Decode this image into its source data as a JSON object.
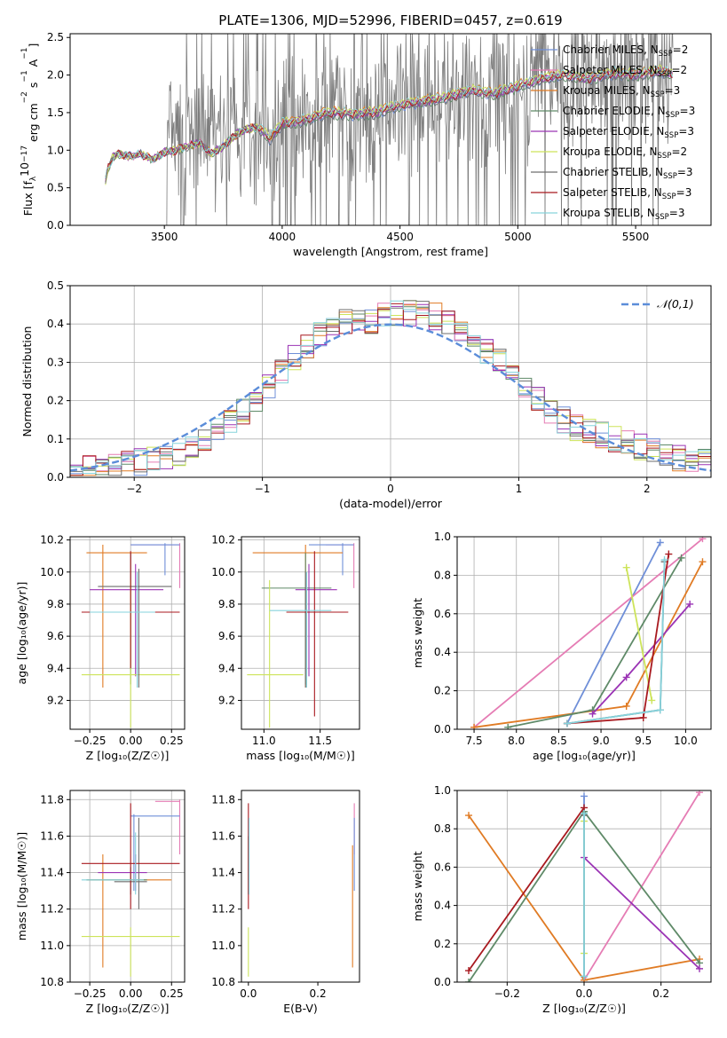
{
  "title": "PLATE=1306, MJD=52996, FIBERID=0457, z=0.619",
  "colors": {
    "Chabrier MILES": "#6f8fd8",
    "Salpeter MILES": "#e57cb4",
    "Kroupa MILES": "#e07b24",
    "Chabrier ELODIE": "#5f8a68",
    "Salpeter ELODIE": "#9b34b5",
    "Kroupa ELODIE": "#cde45a",
    "Chabrier STELIB": "#6e6e6e",
    "Salpeter STELIB": "#a8191f",
    "Kroupa STELIB": "#86d3dc",
    "normal": "#5b8dd9"
  },
  "chart_data": [
    {
      "type": "line",
      "panel": "spectrum",
      "xlabel": "wavelength [Angstrom, rest frame]",
      "ylabel": "Flux [f$_\\lambda$10$^{-17}$ erg cm$^{-2}$ s$^{-1}$ A$^{-1}$]",
      "ylabel_parts": [
        "Flux [f",
        "λ",
        "10",
        "−17",
        " erg cm",
        "−2",
        " s",
        "−1",
        " A",
        "−1",
        "]"
      ],
      "xlim": [
        3100,
        5820
      ],
      "ylim": [
        0,
        2.55
      ],
      "xticks": [
        3500,
        4000,
        4500,
        5000,
        5500
      ],
      "yticks": [
        0.0,
        0.5,
        1.0,
        1.5,
        2.0,
        2.5
      ],
      "data_gray": {
        "x_start": 3510,
        "x_end": 5660,
        "notes": "noisy observed spectrum"
      },
      "model_continuum": {
        "x": [
          3250,
          3260,
          3280,
          3300,
          3350,
          3400,
          3450,
          3500,
          3550,
          3600,
          3650,
          3700,
          3750,
          3800,
          3850,
          3900,
          3950,
          4000,
          4100,
          4200,
          4300,
          4400,
          4500,
          4600,
          4700,
          4800,
          4900,
          5000,
          5100,
          5200,
          5300,
          5400,
          5500,
          5600,
          5660
        ],
        "y": [
          0.6,
          0.75,
          0.9,
          0.95,
          0.92,
          0.95,
          0.88,
          0.97,
          1.0,
          1.05,
          1.1,
          0.95,
          1.05,
          1.2,
          1.28,
          1.3,
          1.15,
          1.35,
          1.4,
          1.5,
          1.48,
          1.5,
          1.6,
          1.65,
          1.7,
          1.8,
          1.75,
          1.85,
          1.95,
          2.0,
          1.95,
          2.02,
          2.0,
          2.05,
          2.0
        ]
      },
      "legend": [
        {
          "label": "Chabrier MILES",
          "sub": "N",
          "subscript": "SSP",
          "value": "=2"
        },
        {
          "label": "Salpeter MILES",
          "sub": "N",
          "subscript": "SSP",
          "value": "=2"
        },
        {
          "label": "Kroupa MILES",
          "sub": "N",
          "subscript": "SSP",
          "value": "=3"
        },
        {
          "label": "Chabrier ELODIE",
          "sub": "N",
          "subscript": "SSP",
          "value": "=3"
        },
        {
          "label": "Salpeter ELODIE",
          "sub": "N",
          "subscript": "SSP",
          "value": "=3"
        },
        {
          "label": "Kroupa ELODIE",
          "sub": "N",
          "subscript": "SSP",
          "value": "=2"
        },
        {
          "label": "Chabrier STELIB",
          "sub": "N",
          "subscript": "SSP",
          "value": "=3"
        },
        {
          "label": "Salpeter STELIB",
          "sub": "N",
          "subscript": "SSP",
          "value": "=3"
        },
        {
          "label": "Kroupa STELIB",
          "sub": "N",
          "subscript": "SSP",
          "value": "=3"
        }
      ],
      "legend_placement": "upper-right"
    },
    {
      "type": "histogram",
      "panel": "residuals",
      "xlabel": "(data-model)/error",
      "ylabel": "Normed distribution",
      "xlim": [
        -2.5,
        2.5
      ],
      "ylim": [
        0,
        0.5
      ],
      "xticks": [
        -2,
        -1,
        0,
        1,
        2
      ],
      "yticks": [
        0.0,
        0.1,
        0.2,
        0.3,
        0.4,
        0.5
      ],
      "grid": true,
      "bins": [
        -2.5,
        -2.4,
        -2.3,
        -2.2,
        -2.1,
        -2.0,
        -1.9,
        -1.8,
        -1.7,
        -1.6,
        -1.5,
        -1.4,
        -1.3,
        -1.2,
        -1.1,
        -1.0,
        -0.9,
        -0.8,
        -0.7,
        -0.6,
        -0.5,
        -0.4,
        -0.3,
        -0.2,
        -0.1,
        0.0,
        0.1,
        0.2,
        0.3,
        0.4,
        0.5,
        0.6,
        0.7,
        0.8,
        0.9,
        1.0,
        1.1,
        1.2,
        1.3,
        1.4,
        1.5,
        1.6,
        1.7,
        1.8,
        1.9,
        2.0,
        2.1,
        2.2,
        2.3,
        2.4,
        2.5
      ],
      "envelope": [
        0.02,
        0.025,
        0.03,
        0.03,
        0.035,
        0.04,
        0.045,
        0.05,
        0.06,
        0.08,
        0.1,
        0.12,
        0.14,
        0.17,
        0.2,
        0.24,
        0.28,
        0.31,
        0.34,
        0.37,
        0.4,
        0.41,
        0.4,
        0.41,
        0.42,
        0.43,
        0.43,
        0.43,
        0.42,
        0.4,
        0.38,
        0.35,
        0.33,
        0.3,
        0.26,
        0.23,
        0.2,
        0.17,
        0.15,
        0.13,
        0.12,
        0.11,
        0.1,
        0.09,
        0.08,
        0.07,
        0.06,
        0.05,
        0.04,
        0.04
      ],
      "legend": [
        {
          "label": "𝒩(0,1)"
        }
      ],
      "legend_placement": "upper-right"
    },
    {
      "type": "scatter",
      "panel": "age-vs-Z",
      "xlabel": "Z [log₁₀(Z/Z☉)]",
      "ylabel": "age  [log₁₀(age/yr)]",
      "xlim": [
        -0.37,
        0.33
      ],
      "ylim": [
        9.02,
        10.22
      ],
      "xticks": [
        -0.25,
        0.0,
        0.25
      ],
      "yticks": [
        9.2,
        9.4,
        9.6,
        9.8,
        10.0,
        10.2
      ],
      "grid": true
    },
    {
      "type": "scatter",
      "panel": "age-vs-mass",
      "xlabel": "mass [log₁₀(M/M☉)]",
      "xlim": [
        10.8,
        11.85
      ],
      "ylim": [
        9.02,
        10.22
      ],
      "xticks": [
        11.0,
        11.5
      ],
      "yticks": [
        9.2,
        9.4,
        9.6,
        9.8,
        10.0,
        10.2
      ],
      "grid": true
    },
    {
      "type": "line",
      "panel": "weight-vs-age",
      "xlabel": "age  [log₁₀(age/yr)]",
      "ylabel": "mass weight",
      "xlim": [
        7.3,
        10.3
      ],
      "ylim": [
        0,
        1.0
      ],
      "xticks": [
        7.5,
        8.0,
        8.5,
        9.0,
        9.5,
        10.0
      ],
      "yticks": [
        0.0,
        0.2,
        0.4,
        0.6,
        0.8,
        1.0
      ],
      "grid": true,
      "series": [
        {
          "name": "Chabrier MILES",
          "x": [
            8.6,
            9.7
          ],
          "y": [
            0.03,
            0.97
          ]
        },
        {
          "name": "Salpeter MILES",
          "x": [
            7.5,
            10.2
          ],
          "y": [
            0.01,
            0.99
          ]
        },
        {
          "name": "Kroupa MILES",
          "x": [
            7.5,
            9.3,
            10.2
          ],
          "y": [
            0.01,
            0.12,
            0.87
          ]
        },
        {
          "name": "Chabrier ELODIE",
          "x": [
            7.9,
            8.9,
            9.95
          ],
          "y": [
            0.01,
            0.1,
            0.89
          ]
        },
        {
          "name": "Salpeter ELODIE",
          "x": [
            8.9,
            9.3,
            10.05
          ],
          "y": [
            0.08,
            0.27,
            0.65
          ]
        },
        {
          "name": "Kroupa ELODIE",
          "x": [
            9.3,
            9.6
          ],
          "y": [
            0.84,
            0.15
          ]
        },
        {
          "name": "Chabrier STELIB",
          "x": [
            8.6,
            9.7,
            9.75
          ],
          "y": [
            0.03,
            0.1,
            0.87
          ]
        },
        {
          "name": "Salpeter STELIB",
          "x": [
            8.6,
            9.5,
            9.8
          ],
          "y": [
            0.03,
            0.06,
            0.91
          ]
        },
        {
          "name": "Kroupa STELIB",
          "x": [
            8.6,
            9.7,
            9.75
          ],
          "y": [
            0.03,
            0.1,
            0.88
          ]
        }
      ]
    },
    {
      "type": "scatter",
      "panel": "mass-vs-Z",
      "xlabel": "Z [log₁₀(Z/Z☉)]",
      "ylabel": "mass [log₁₀(M/M☉)]",
      "xlim": [
        -0.37,
        0.33
      ],
      "ylim": [
        10.8,
        11.85
      ],
      "xticks": [
        -0.25,
        0.0,
        0.25
      ],
      "yticks": [
        10.8,
        11.0,
        11.2,
        11.4,
        11.6,
        11.8
      ],
      "grid": true
    },
    {
      "type": "scatter",
      "panel": "mass-vs-EBV",
      "xlabel": "E(B-V)",
      "xlim": [
        -0.02,
        0.32
      ],
      "ylim": [
        10.8,
        11.85
      ],
      "xticks": [
        0.0,
        0.2
      ],
      "yticks": [
        10.8,
        11.0,
        11.2,
        11.4,
        11.6,
        11.8
      ],
      "grid": false
    },
    {
      "type": "line",
      "panel": "weight-vs-Z",
      "xlabel": "Z [log₁₀(Z/Z☉)]",
      "ylabel": "mass weight",
      "xlim": [
        -0.33,
        0.33
      ],
      "ylim": [
        0,
        1.0
      ],
      "xticks": [
        -0.2,
        0.0,
        0.2
      ],
      "yticks": [
        0.0,
        0.2,
        0.4,
        0.6,
        0.8,
        1.0
      ],
      "grid": true,
      "series": [
        {
          "name": "Chabrier MILES",
          "x": [
            0.0,
            0.0
          ],
          "y": [
            0.03,
            0.97
          ]
        },
        {
          "name": "Salpeter MILES",
          "x": [
            0.0,
            0.3
          ],
          "y": [
            0.01,
            0.99
          ]
        },
        {
          "name": "Kroupa MILES",
          "x": [
            -0.3,
            0.0,
            0.3
          ],
          "y": [
            0.87,
            0.01,
            0.12
          ]
        },
        {
          "name": "Chabrier ELODIE",
          "x": [
            -0.3,
            0.0,
            0.3
          ],
          "y": [
            0.0,
            0.89,
            0.1
          ]
        },
        {
          "name": "Salpeter ELODIE",
          "x": [
            0.0,
            0.3
          ],
          "y": [
            0.65,
            0.07
          ]
        },
        {
          "name": "Kroupa ELODIE",
          "x": [
            0.0,
            0.0
          ],
          "y": [
            0.15,
            0.84
          ]
        },
        {
          "name": "Chabrier STELIB",
          "x": [
            0.0,
            0.0
          ],
          "y": [
            0.03,
            0.87
          ]
        },
        {
          "name": "Salpeter STELIB",
          "x": [
            -0.3,
            0.0
          ],
          "y": [
            0.06,
            0.91
          ]
        },
        {
          "name": "Kroupa STELIB",
          "x": [
            0.0,
            0.0
          ],
          "y": [
            0.03,
            0.88
          ]
        }
      ]
    }
  ]
}
